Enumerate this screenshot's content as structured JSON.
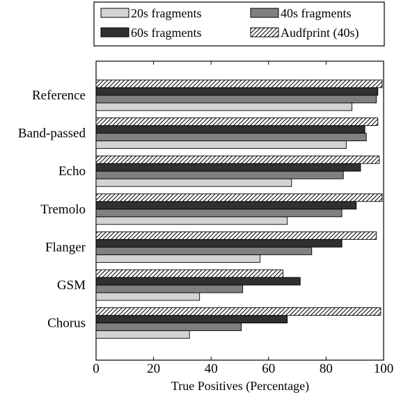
{
  "chart_data": {
    "type": "bar",
    "orientation": "horizontal",
    "title": "",
    "xlabel": "True Positives (Percentage)",
    "ylabel": "",
    "xlim": [
      0,
      100
    ],
    "x_ticks": [
      0,
      20,
      40,
      60,
      80,
      100
    ],
    "grid": false,
    "legend_position": "top",
    "categories": [
      "Reference",
      "Band-passed",
      "Echo",
      "Tremolo",
      "Flanger",
      "GSM",
      "Chorus"
    ],
    "series": [
      {
        "name": "20s fragments",
        "color": "#d3d3d3",
        "pattern": "solid",
        "values": [
          89,
          87,
          68,
          66.5,
          57,
          36,
          32.5
        ]
      },
      {
        "name": "40s fragments",
        "color": "#808080",
        "pattern": "solid",
        "values": [
          97.5,
          94,
          86,
          85.5,
          75,
          51,
          50.5
        ]
      },
      {
        "name": "60s fragments",
        "color": "#303030",
        "pattern": "solid",
        "values": [
          98,
          93.5,
          92,
          90.5,
          85.5,
          71,
          66.5
        ]
      },
      {
        "name": "Audfprint (40s)",
        "color": "#ffffff",
        "pattern": "diagonal-hatch",
        "values": [
          99.5,
          98,
          98.5,
          99.5,
          97.5,
          65,
          99
        ]
      }
    ]
  }
}
